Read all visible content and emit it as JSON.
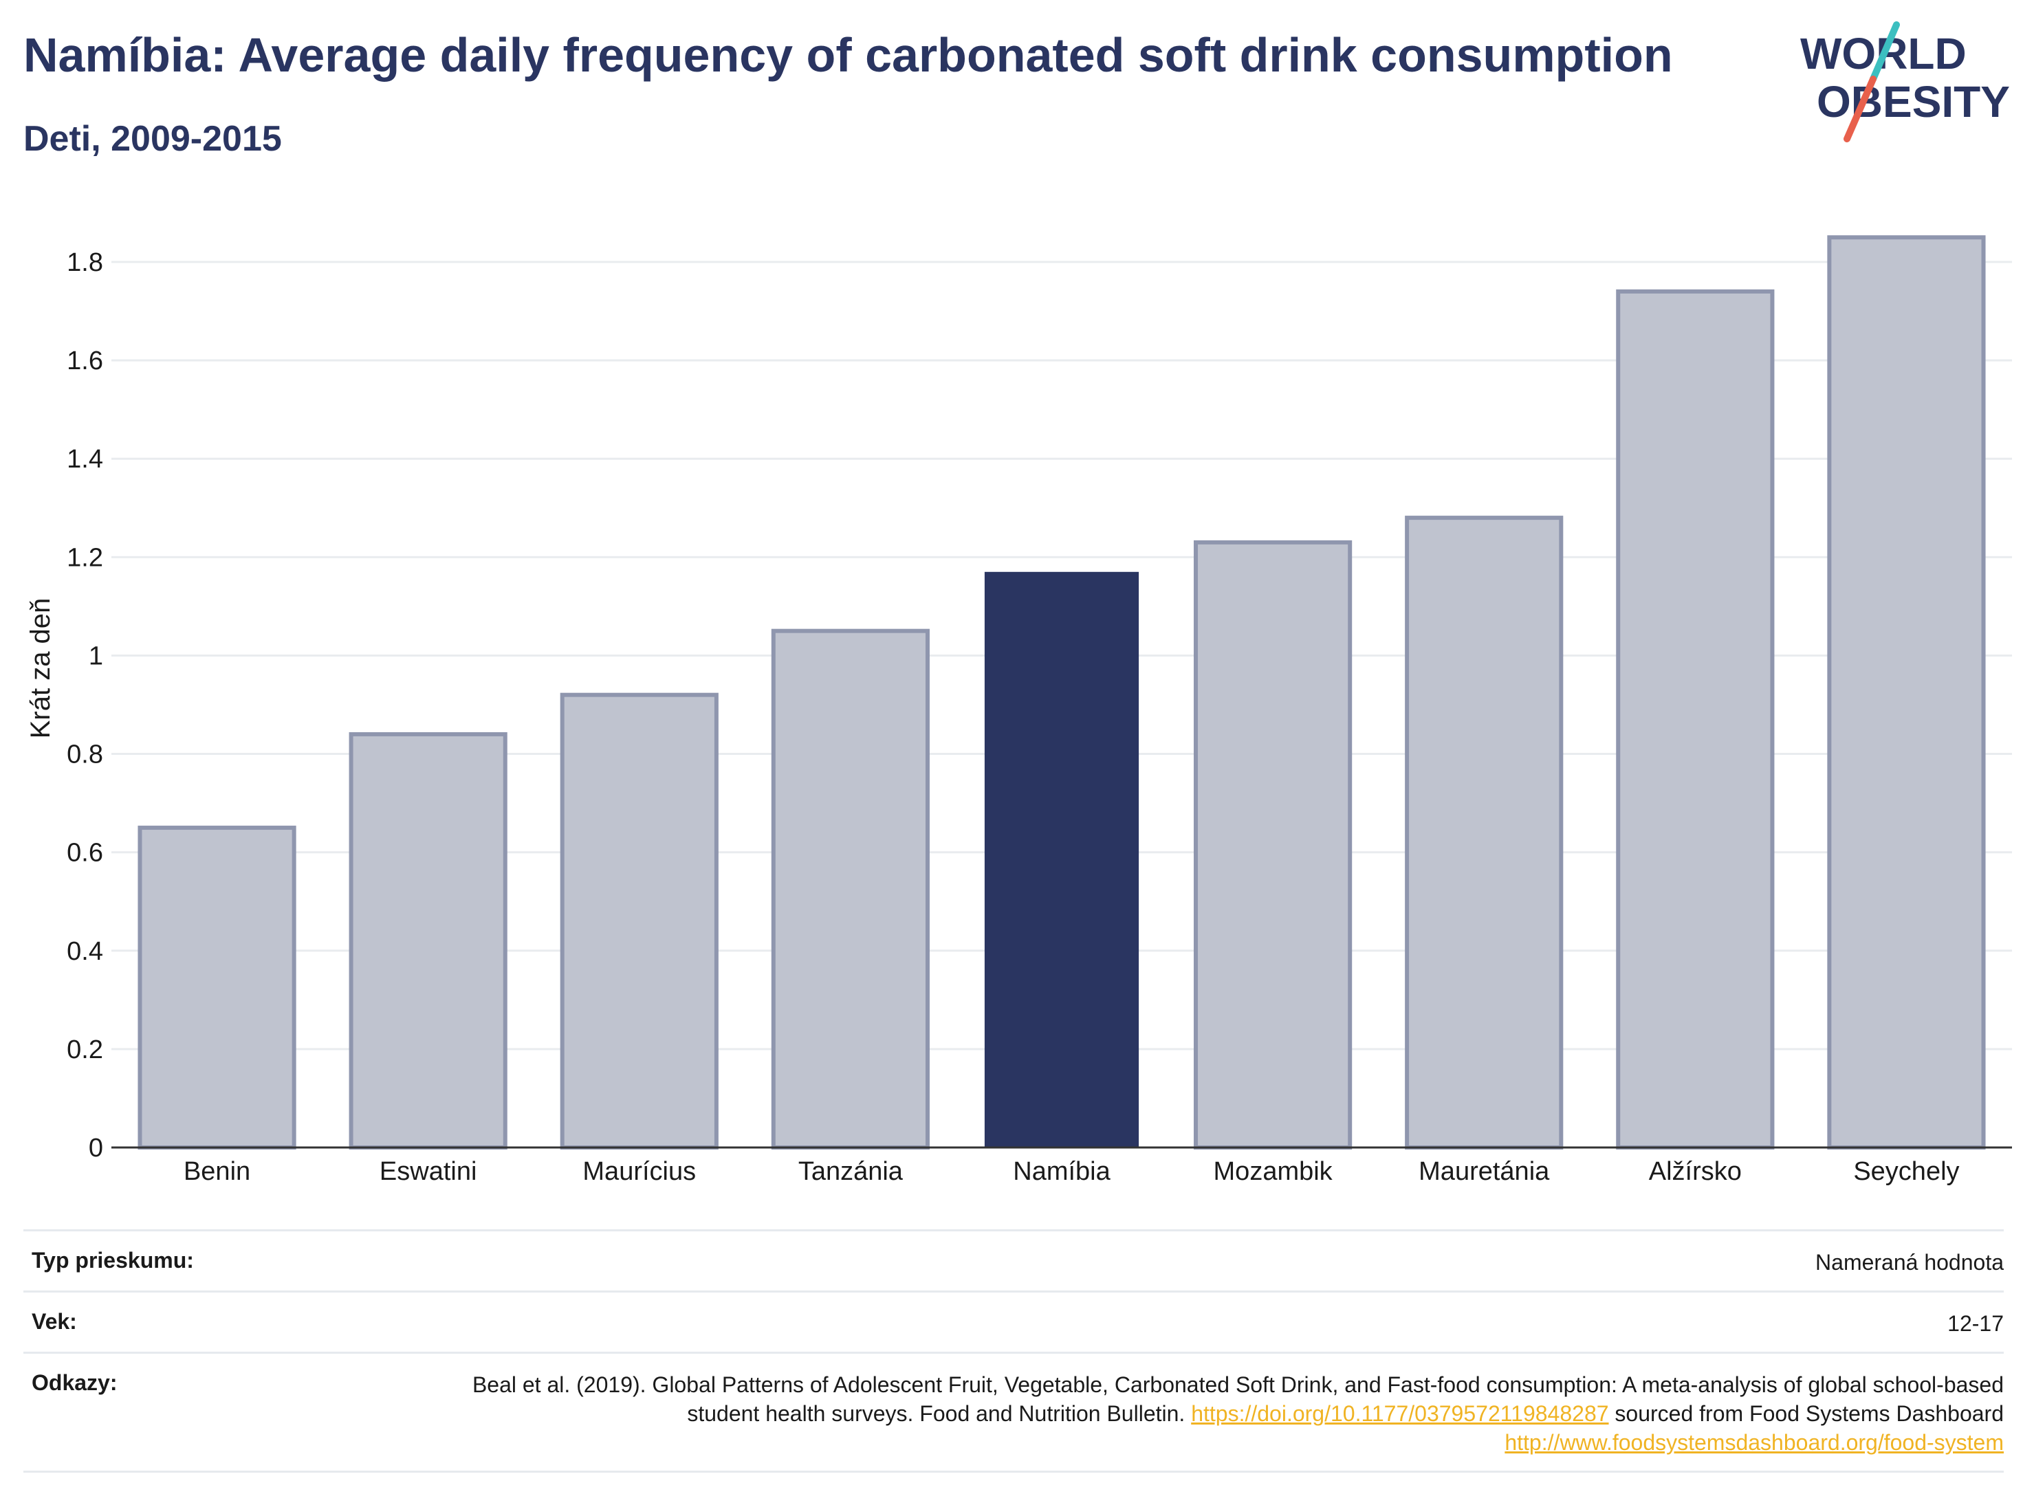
{
  "title": "Namíbia: Average daily frequency of carbonated soft drink consumption",
  "subtitle": "Deti, 2009-2015",
  "logo": {
    "line1": "WORLD",
    "line2": "OBESITY"
  },
  "colors": {
    "highlight": "#2a3561",
    "other": "#bfc3cf",
    "other_border": "#8f96ae",
    "accent_teal": "#3cbfc0",
    "accent_coral": "#e8604c",
    "link": "#f0b323"
  },
  "chart_data": {
    "type": "bar",
    "categories": [
      "Benin",
      "Eswatini",
      "Maurícius",
      "Tanzánia",
      "Namíbia",
      "Mozambik",
      "Mauretánia",
      "Alžírsko",
      "Seychely"
    ],
    "values": [
      0.65,
      0.84,
      0.92,
      1.05,
      1.17,
      1.23,
      1.28,
      1.74,
      1.85
    ],
    "highlight": "Namíbia",
    "ylabel": "Krát za deň",
    "xlabel": "",
    "ylim": [
      0,
      1.9
    ],
    "yticks": [
      0,
      0.2,
      0.4,
      0.6,
      0.8,
      1,
      1.2,
      1.4,
      1.6,
      1.8
    ],
    "ytick_labels": [
      "0",
      "0.2",
      "0.4",
      "0.6",
      "0.8",
      "1",
      "1.2",
      "1.4",
      "1.6",
      "1.8"
    ],
    "grid": true
  },
  "info": {
    "survey_label": "Typ prieskumu:",
    "survey_value": "Nameraná hodnota",
    "age_label": "Vek:",
    "age_value": "12-17",
    "refs_label": "Odkazy:",
    "refs_text_1": "Beal et al. (2019). Global Patterns of Adolescent Fruit, Vegetable, Carbonated Soft Drink, and Fast-food consumption: A meta-analysis of global school-based student health surveys. Food and Nutrition Bulletin.",
    "refs_link_1": "https://doi.org/10.1177/0379572119848287",
    "refs_text_2": "sourced from Food Systems Dashboard",
    "refs_link_2": "http://www.foodsystemsdashboard.org/food-system"
  }
}
